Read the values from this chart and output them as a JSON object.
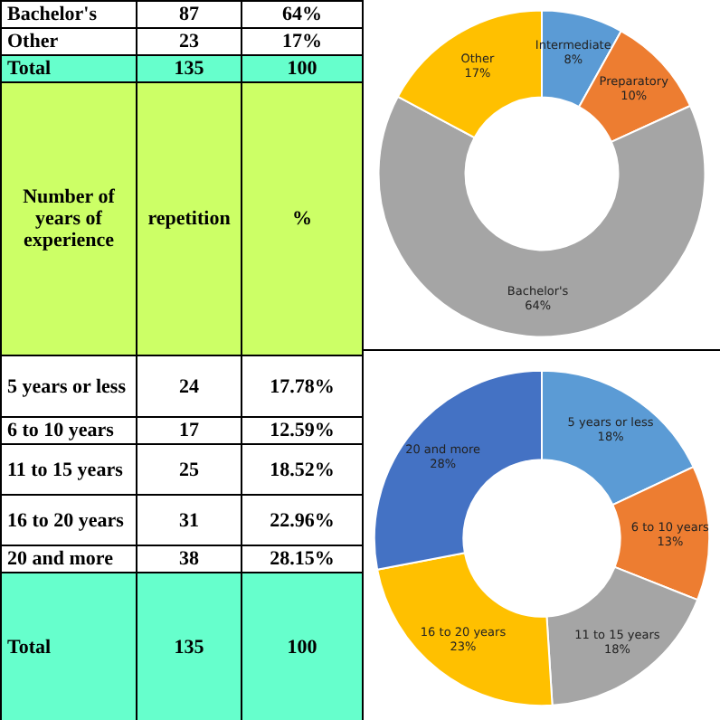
{
  "chart_data": [
    {
      "type": "other",
      "annotations": [
        "Bachelor's",
        "87",
        "64%",
        "Other",
        "23",
        "17%",
        "Total",
        "135",
        "100",
        "Number of years of experience",
        "repetition",
        "%",
        "5 years or less",
        "24",
        "17.78%",
        "6 to 10 years",
        "17",
        "12.59%",
        "11 to 15 years",
        "25",
        "18.52%",
        "16 to 20 years",
        "31",
        "22.96%",
        "20 and more",
        "38",
        "28.15%",
        "Total",
        "135",
        "100"
      ]
    },
    {
      "type": "donut",
      "categories": [
        "Intermediate",
        "Preparatory",
        "Bachelor's",
        "Other"
      ],
      "values": [
        8,
        10,
        64,
        17
      ],
      "value_labels": [
        "8%",
        "10%",
        "64%",
        "17%"
      ],
      "colors": [
        "#5b9bd5",
        "#ed7d31",
        "#a5a5a5",
        "#ffc000"
      ],
      "legend": false
    },
    {
      "type": "donut",
      "categories": [
        "5 years or less",
        "6 to 10 years",
        "11 to 15 years",
        "16 to 20 years",
        "20 and more"
      ],
      "values": [
        18,
        13,
        18,
        23,
        28
      ],
      "value_labels": [
        "18%",
        "13%",
        "18%",
        "23%",
        "28%"
      ],
      "colors": [
        "#5b9bd5",
        "#ed7d31",
        "#a5a5a5",
        "#ffc000",
        "#4472c4"
      ],
      "legend": false
    }
  ]
}
